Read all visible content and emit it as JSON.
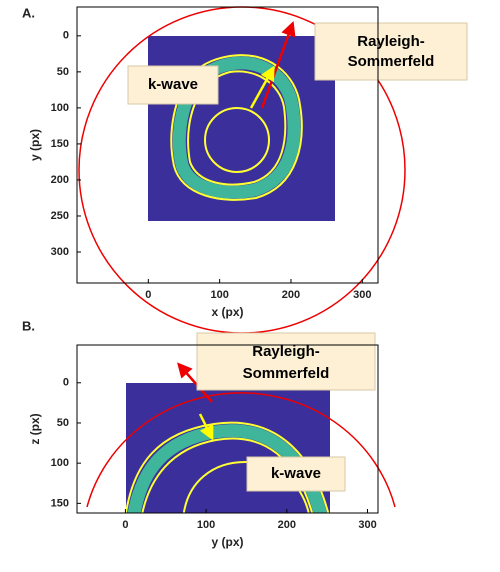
{
  "chart_data": [
    {
      "type": "image",
      "panel_label": "A.",
      "xlabel": "x (px)",
      "ylabel": "y (px)",
      "xlim": [
        -100,
        322
      ],
      "ylim": [
        -40,
        343
      ],
      "y_reversed": true,
      "xticks": [
        0,
        100,
        200,
        300
      ],
      "yticks": [
        0,
        50,
        100,
        150,
        200,
        250,
        300
      ],
      "annotations": [
        {
          "text": [
            "Rayleigh-",
            "Sommerfeld"
          ]
        },
        {
          "text": [
            "k-wave"
          ]
        }
      ]
    },
    {
      "type": "image",
      "panel_label": "B.",
      "xlabel": "y (px)",
      "ylabel": "z (px)",
      "xlim": [
        -60,
        313
      ],
      "ylim": [
        -47,
        162
      ],
      "y_reversed": true,
      "xticks": [
        0,
        100,
        200,
        300
      ],
      "yticks": [
        0,
        50,
        100,
        150
      ],
      "annotations": [
        {
          "text": [
            "Rayleigh-",
            "Sommerfeld"
          ]
        },
        {
          "text": [
            "k-wave"
          ]
        }
      ]
    }
  ]
}
